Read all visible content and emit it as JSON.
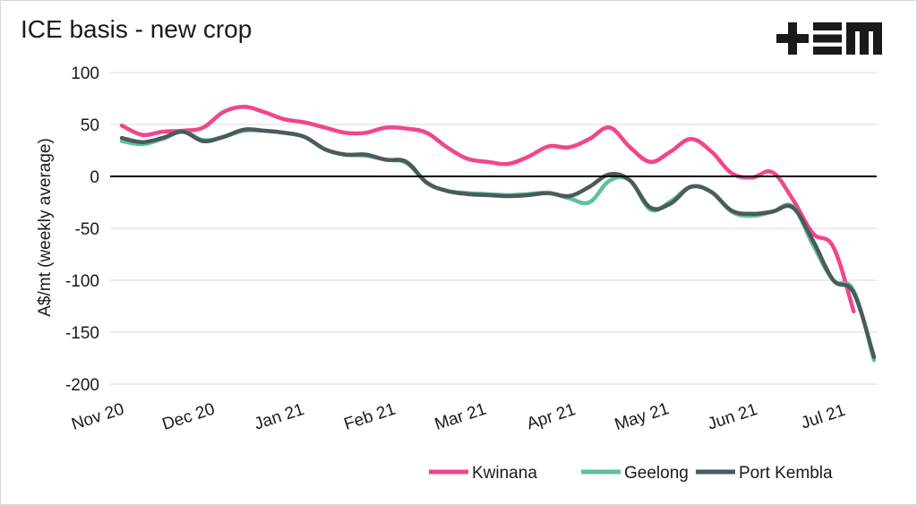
{
  "header": {
    "title": "ICE basis - new crop",
    "logo_label": "+EM"
  },
  "chart_data": {
    "type": "line",
    "title": "ICE basis - new crop",
    "ylabel": "A$/mt (weekly average)",
    "xlabel": "",
    "ylim": [
      -200,
      100
    ],
    "yticks": [
      100,
      50,
      0,
      -50,
      -100,
      -150,
      -200
    ],
    "ytick_labels": [
      "100",
      "50",
      "0",
      "-50",
      "-100",
      "-150",
      "-200"
    ],
    "x_ticks": [
      "Nov 20",
      "Dec 20",
      "Jan 21",
      "Feb 21",
      "Mar 21",
      "Apr 21",
      "May 21",
      "Jun 21",
      "Jul 21"
    ],
    "zero_line": true,
    "grid": "horizontal",
    "legend_position": "bottom-right",
    "x": [
      "2020-11-01",
      "2020-11-08",
      "2020-11-15",
      "2020-11-22",
      "2020-11-29",
      "2020-12-06",
      "2020-12-13",
      "2020-12-20",
      "2020-12-27",
      "2021-01-03",
      "2021-01-10",
      "2021-01-17",
      "2021-01-24",
      "2021-01-31",
      "2021-02-07",
      "2021-02-14",
      "2021-02-21",
      "2021-02-28",
      "2021-03-07",
      "2021-03-14",
      "2021-03-21",
      "2021-03-28",
      "2021-04-04",
      "2021-04-11",
      "2021-04-18",
      "2021-04-25",
      "2021-05-02",
      "2021-05-09",
      "2021-05-16",
      "2021-05-23",
      "2021-05-30",
      "2021-06-06",
      "2021-06-13",
      "2021-06-20",
      "2021-06-27",
      "2021-07-04",
      "2021-07-11",
      "2021-07-18"
    ],
    "series": [
      {
        "name": "Kwinana",
        "color": "#f0468c",
        "values": [
          49,
          40,
          43,
          44,
          47,
          62,
          67,
          62,
          55,
          52,
          47,
          42,
          42,
          47,
          46,
          42,
          28,
          17,
          14,
          12,
          19,
          29,
          28,
          36,
          47,
          28,
          14,
          24,
          36,
          24,
          3,
          -1,
          4,
          -22,
          -55,
          -68,
          -130,
          null
        ]
      },
      {
        "name": "Geelong",
        "color": "#5fbf9e",
        "values": [
          34,
          31,
          36,
          43,
          35,
          38,
          44,
          44,
          42,
          38,
          26,
          21,
          20,
          16,
          13,
          -6,
          -14,
          -16,
          -17,
          -18,
          -17,
          -16,
          -21,
          -25,
          -4,
          -4,
          -32,
          -24,
          -10,
          -15,
          -34,
          -38,
          -34,
          -29,
          -66,
          -100,
          -110,
          -177
        ]
      },
      {
        "name": "Port Kembla",
        "color": "#4b5a5c",
        "values": [
          37,
          33,
          37,
          43,
          34,
          38,
          45,
          44,
          42,
          38,
          26,
          21,
          21,
          16,
          14,
          -6,
          -14,
          -17,
          -18,
          -19,
          -18,
          -16,
          -19,
          -10,
          2,
          -4,
          -30,
          -26,
          -10,
          -15,
          -33,
          -36,
          -34,
          -30,
          -62,
          -100,
          -112,
          -174
        ]
      }
    ]
  }
}
